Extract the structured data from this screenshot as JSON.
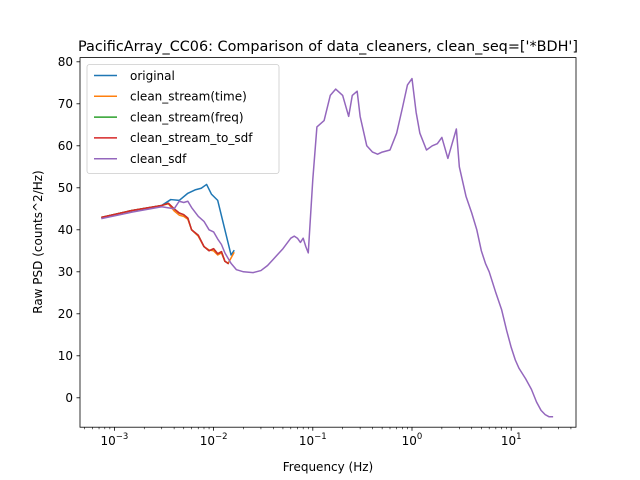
{
  "chart_data": {
    "type": "line",
    "title": "PacificArray_CC06: Comparison of data_cleaners, clean_seq=['*BDH']",
    "xlabel": "Frequency (Hz)",
    "ylabel": "Raw PSD (counts^2/Hz)",
    "xscale": "log",
    "xlim": [
      0.00045,
      45
    ],
    "ylim": [
      -7,
      81
    ],
    "x_ticks": [
      {
        "value": 0.001,
        "base": "10",
        "exp": "−3"
      },
      {
        "value": 0.01,
        "base": "10",
        "exp": "−2"
      },
      {
        "value": 0.1,
        "base": "10",
        "exp": "−1"
      },
      {
        "value": 1,
        "base": "10",
        "exp": "0"
      },
      {
        "value": 10,
        "base": "10",
        "exp": "1"
      }
    ],
    "y_ticks": [
      "0",
      "10",
      "20",
      "30",
      "40",
      "50",
      "60",
      "70",
      "80"
    ],
    "grid": false,
    "legend_position": "top-left",
    "series": [
      {
        "name": "original",
        "color": "#1f77b4",
        "x": [
          0.00075,
          0.0015,
          0.003,
          0.0037,
          0.0045,
          0.0055,
          0.0065,
          0.0075,
          0.0085,
          0.0095,
          0.011,
          0.013,
          0.015,
          0.016
        ],
        "y": [
          43,
          44.6,
          45.8,
          47.2,
          47,
          48.7,
          49.5,
          49.9,
          50.8,
          48.5,
          47,
          40,
          34,
          35
        ]
      },
      {
        "name": "clean_stream(time)",
        "color": "#ff7f0e",
        "x": [
          0.00075,
          0.0015,
          0.003,
          0.0035,
          0.004,
          0.0045,
          0.005,
          0.0055,
          0.006,
          0.007,
          0.008,
          0.009,
          0.01,
          0.011,
          0.012,
          0.013,
          0.014,
          0.016
        ],
        "y": [
          43,
          44.6,
          45.8,
          46.2,
          44.5,
          43.5,
          43.2,
          42.5,
          40,
          38.5,
          36,
          35.2,
          35,
          34,
          34.5,
          32.5,
          32,
          34.5
        ]
      },
      {
        "name": "clean_stream(freq)",
        "color": "#2ca02c",
        "x": [
          0.00075,
          0.0015,
          0.003,
          0.0035,
          0.004,
          0.0045,
          0.005,
          0.0055,
          0.006,
          0.007,
          0.008,
          0.009,
          0.01,
          0.011,
          0.012,
          0.013,
          0.014
        ],
        "y": [
          43,
          44.6,
          45.8,
          46.3,
          45,
          44,
          43.6,
          42.8,
          40,
          38.7,
          36,
          35,
          35.5,
          34.3,
          34.8,
          32.5,
          32
        ]
      },
      {
        "name": "clean_stream_to_sdf",
        "color": "#d62728",
        "x": [
          0.00075,
          0.0015,
          0.003,
          0.0035,
          0.004,
          0.0045,
          0.005,
          0.0055,
          0.006,
          0.007,
          0.008,
          0.009,
          0.01,
          0.011,
          0.012,
          0.013,
          0.014
        ],
        "y": [
          43,
          44.6,
          45.8,
          46.3,
          45,
          44,
          43.6,
          42.8,
          40,
          38.7,
          36,
          35,
          35.5,
          34.3,
          34.8,
          32.5,
          32
        ]
      },
      {
        "name": "clean_sdf",
        "color": "#9467bd",
        "x": [
          0.00075,
          0.0015,
          0.003,
          0.004,
          0.0045,
          0.005,
          0.0055,
          0.006,
          0.007,
          0.008,
          0.009,
          0.01,
          0.011,
          0.012,
          0.013,
          0.015,
          0.017,
          0.02,
          0.025,
          0.03,
          0.035,
          0.04,
          0.05,
          0.06,
          0.065,
          0.07,
          0.075,
          0.08,
          0.085,
          0.09,
          0.1,
          0.11,
          0.13,
          0.15,
          0.17,
          0.2,
          0.23,
          0.25,
          0.28,
          0.3,
          0.35,
          0.4,
          0.45,
          0.5,
          0.6,
          0.7,
          0.8,
          0.9,
          1.0,
          1.1,
          1.2,
          1.4,
          1.6,
          1.8,
          2.0,
          2.3,
          2.5,
          2.8,
          3.0,
          3.5,
          4.0,
          4.5,
          5.0,
          5.5,
          6.0,
          7.0,
          8.0,
          9.0,
          10,
          11,
          12,
          14,
          16,
          18,
          20,
          22,
          24,
          26
        ],
        "y": [
          42.7,
          44.2,
          45.5,
          45,
          46.8,
          46.5,
          46.8,
          45.3,
          43.2,
          42,
          40,
          39.5,
          37.8,
          36.5,
          34.5,
          32,
          30.5,
          30,
          29.8,
          30.3,
          31.5,
          33,
          35.5,
          38,
          38.5,
          38,
          37,
          38,
          36,
          34.5,
          52,
          64.5,
          66,
          72,
          73.5,
          72,
          67,
          72,
          73,
          67,
          60,
          58.5,
          58,
          58.5,
          59,
          63,
          69,
          74.5,
          76,
          68,
          63,
          59,
          60,
          60.5,
          62,
          57,
          60,
          64,
          55,
          48,
          44,
          40,
          35,
          32,
          30,
          25,
          21,
          16,
          12,
          9,
          7,
          4.5,
          2,
          -1,
          -3,
          -4,
          -4.5,
          -4.5
        ]
      }
    ]
  }
}
